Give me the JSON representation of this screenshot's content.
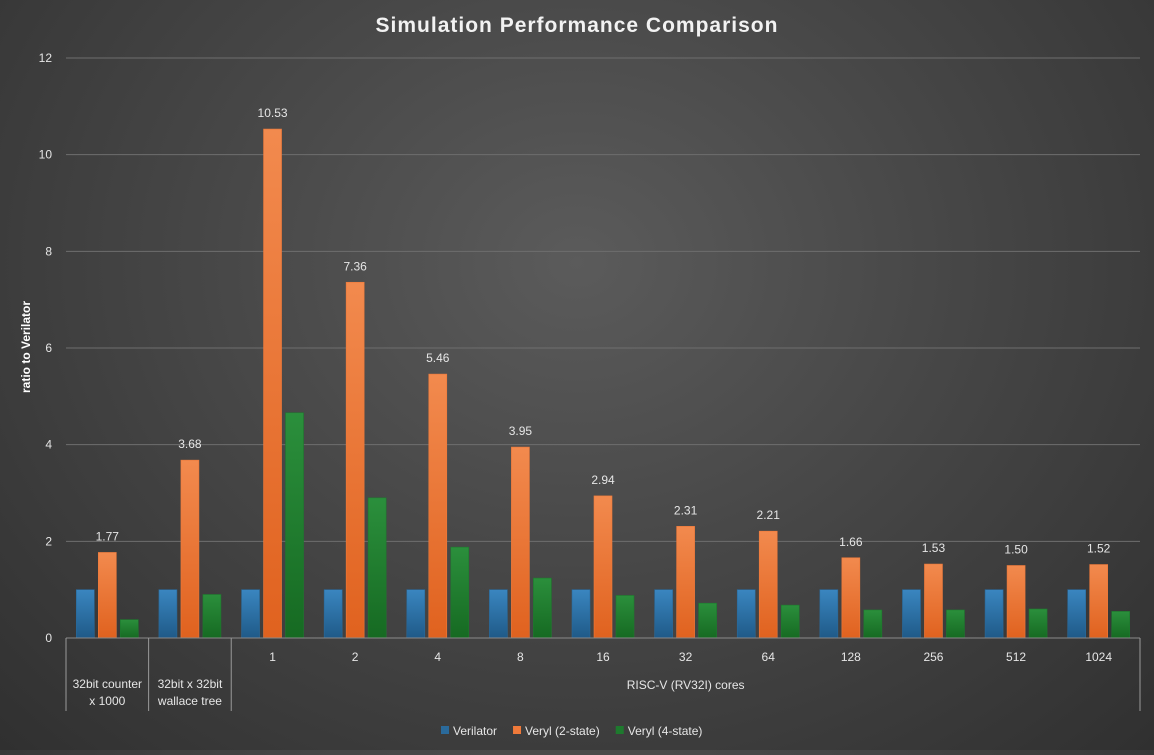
{
  "chart_data": {
    "type": "bar",
    "title": "Simulation Performance Comparison",
    "ylabel": "ratio to Verilator",
    "xlabel": "",
    "ylim": [
      0,
      12
    ],
    "yticks": [
      0,
      2,
      4,
      6,
      8,
      10,
      12
    ],
    "grid": true,
    "legend_position": "bottom",
    "categories": [
      "32bit counter x 1000",
      "32bit x 32bit wallace tree",
      "1",
      "2",
      "4",
      "8",
      "16",
      "32",
      "64",
      "128",
      "256",
      "512",
      "1024"
    ],
    "category_groups": [
      {
        "label_lines": [
          "32bit counter",
          "x 1000"
        ],
        "span": 1
      },
      {
        "label_lines": [
          "32bit x 32bit",
          "wallace tree"
        ],
        "span": 1
      },
      {
        "label_lines": [
          "RISC-V (RV32I) cores"
        ],
        "span": 11
      }
    ],
    "tick_labels": [
      "",
      "",
      "1",
      "2",
      "4",
      "8",
      "16",
      "32",
      "64",
      "128",
      "256",
      "512",
      "1024"
    ],
    "series": [
      {
        "name": "Verilator",
        "color": "#2a6a9b",
        "values": [
          1,
          1,
          1,
          1,
          1,
          1,
          1,
          1,
          1,
          1,
          1,
          1,
          1
        ],
        "show_labels": false
      },
      {
        "name": "Veryl (2-state)",
        "color": "#f07a3a",
        "values": [
          1.77,
          3.68,
          10.53,
          7.36,
          5.46,
          3.95,
          2.94,
          2.31,
          2.21,
          1.66,
          1.53,
          1.5,
          1.52
        ],
        "show_labels": true
      },
      {
        "name": "Veryl (4-state)",
        "color": "#1e7a2e",
        "values": [
          0.38,
          0.9,
          4.66,
          2.9,
          1.88,
          1.24,
          0.88,
          0.72,
          0.68,
          0.58,
          0.58,
          0.6,
          0.55
        ],
        "show_labels": false
      }
    ],
    "data_labels": [
      "1.77",
      "3.68",
      "10.53",
      "7.36",
      "5.46",
      "3.95",
      "2.94",
      "2.31",
      "2.21",
      "1.66",
      "1.53",
      "1.50",
      "1.52"
    ]
  }
}
